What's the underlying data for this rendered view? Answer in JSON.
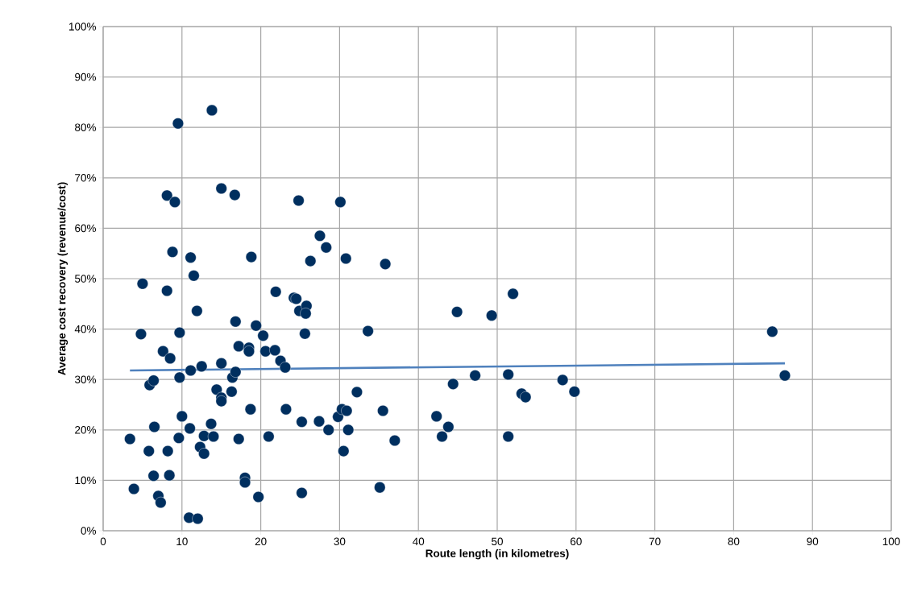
{
  "chart_data": {
    "type": "scatter",
    "xlabel": "Route length (in kilometres)",
    "ylabel": "Average cost recovery (revenue/cost)",
    "xlim": [
      0,
      100
    ],
    "xticks": [
      0,
      10,
      20,
      30,
      40,
      50,
      60,
      70,
      80,
      90,
      100
    ],
    "ylim": [
      0,
      100
    ],
    "yticks": [
      {
        "value": 0,
        "label": "0%"
      },
      {
        "value": 10,
        "label": "10%"
      },
      {
        "value": 20,
        "label": "20%"
      },
      {
        "value": 30,
        "label": "30%"
      },
      {
        "value": 40,
        "label": "40%"
      },
      {
        "value": 50,
        "label": "50%"
      },
      {
        "value": 60,
        "label": "60%"
      },
      {
        "value": 70,
        "label": "70%"
      },
      {
        "value": 80,
        "label": "80%"
      },
      {
        "value": 90,
        "label": "90%"
      },
      {
        "value": 100,
        "label": "100%"
      }
    ],
    "grid": true,
    "series": [
      {
        "color": "#002f5f",
        "marker": "circle",
        "x": [
          3.4,
          3.9,
          5.0,
          4.8,
          5.9,
          5.8,
          6.4,
          6.5,
          6.4,
          7.0,
          7.3,
          7.6,
          8.1,
          8.1,
          8.2,
          8.4,
          8.5,
          8.8,
          9.1,
          9.5,
          9.7,
          9.7,
          9.6,
          10.0,
          10.9,
          12.0,
          11.1,
          11.1,
          11.0,
          11.5,
          11.9,
          12.5,
          12.3,
          12.8,
          12.8,
          13.8,
          13.7,
          14.0,
          14.4,
          15.0,
          15.0,
          15.0,
          15.0,
          16.3,
          16.4,
          16.7,
          16.8,
          16.8,
          17.2,
          17.2,
          18.0,
          18.0,
          18.5,
          18.5,
          18.7,
          18.8,
          19.4,
          19.7,
          20.3,
          20.6,
          21.0,
          21.8,
          21.9,
          22.5,
          23.1,
          23.2,
          24.2,
          24.5,
          24.9,
          24.8,
          25.2,
          25.2,
          25.6,
          25.8,
          25.7,
          26.3,
          27.4,
          27.5,
          28.3,
          28.6,
          29.8,
          30.1,
          30.3,
          30.5,
          31.1,
          30.9,
          30.8,
          32.2,
          35.5,
          35.1,
          35.8,
          37.0,
          33.6,
          44.9,
          49.3,
          52.0,
          84.9,
          86.5,
          44.4,
          47.2,
          51.4,
          58.3,
          59.8,
          53.1,
          53.6,
          42.3,
          43.8,
          43.0,
          51.4
        ],
        "values": [
          18.2,
          8.3,
          49,
          39,
          28.9,
          15.8,
          29.8,
          20.6,
          10.9,
          6.9,
          5.6,
          35.6,
          66.5,
          47.6,
          15.8,
          11.0,
          34.2,
          55.3,
          65.2,
          80.8,
          39.3,
          30.4,
          18.4,
          22.7,
          2.6,
          2.4,
          54.2,
          31.8,
          20.3,
          50.6,
          43.6,
          32.6,
          16.6,
          18.8,
          15.3,
          83.4,
          21.2,
          18.7,
          28.0,
          67.9,
          33.2,
          26.4,
          25.7,
          27.6,
          30.4,
          66.6,
          41.5,
          31.5,
          18.2,
          36.6,
          10.5,
          9.6,
          36.3,
          35.6,
          24.1,
          54.3,
          40.7,
          6.7,
          38.7,
          35.6,
          18.7,
          35.8,
          47.4,
          33.7,
          32.4,
          24.1,
          46.2,
          46.0,
          43.6,
          65.5,
          7.5,
          21.6,
          39.1,
          44.6,
          43.1,
          53.5,
          21.7,
          58.5,
          56.2,
          20.0,
          22.6,
          65.2,
          24.1,
          15.8,
          20.0,
          23.8,
          54.0,
          27.5,
          23.8,
          8.6,
          52.9,
          17.9,
          39.6,
          43.4,
          42.7,
          47.0,
          39.5,
          30.8,
          29.1,
          30.8,
          31.0,
          29.9,
          27.6,
          27.2,
          26.5,
          22.7,
          20.6,
          18.7,
          18.7
        ]
      },
      {
        "type": "line",
        "color": "#4f81bd",
        "marker": "none",
        "line_style": "solid",
        "x": [
          3.4,
          86.5
        ],
        "values": [
          31.8,
          33.2
        ]
      }
    ]
  }
}
